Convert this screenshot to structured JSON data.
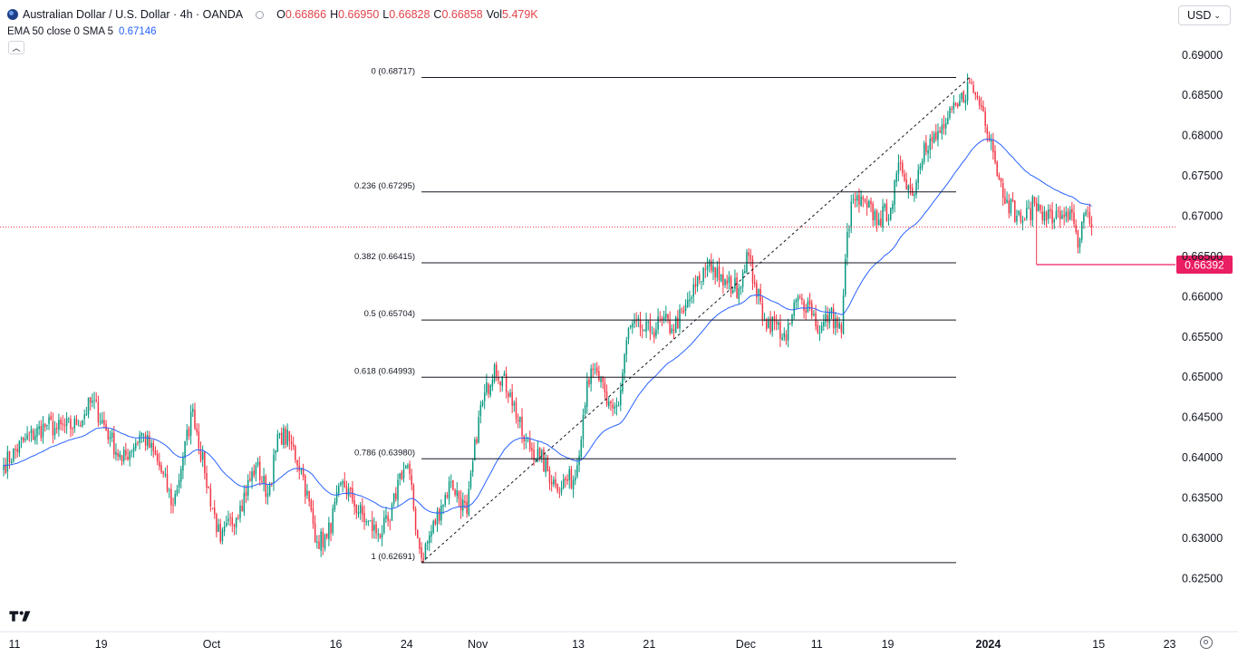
{
  "header": {
    "symbol": "Australian Dollar / U.S. Dollar · 4h · OANDA",
    "open_label": "O",
    "open": "0.66866",
    "high_label": "H",
    "high": "0.66950",
    "low_label": "L",
    "low": "0.66828",
    "close_label": "C",
    "close": "0.66858",
    "vol_label": "Vol",
    "vol": "5.479K"
  },
  "indicator": {
    "label": "EMA 50 close 0 SMA 5",
    "value": "0.67146"
  },
  "currency_selector": {
    "label": "USD"
  },
  "colors": {
    "up": "#089981",
    "down": "#f23645",
    "ema": "#2962ff",
    "price_line": "#f23645",
    "fib": "#131722"
  },
  "chart_data": {
    "type": "candlestick",
    "title": "Australian Dollar / U.S. Dollar · 4h · OANDA",
    "ylim": [
      0.6225,
      0.6915
    ],
    "y_ticks": [
      "0.69000",
      "0.68500",
      "0.68000",
      "0.67500",
      "0.67000",
      "0.66500",
      "0.66000",
      "0.65500",
      "0.65000",
      "0.64500",
      "0.64000",
      "0.63500",
      "0.63000",
      "0.62500"
    ],
    "x_ticks": [
      {
        "label": "11",
        "i": 0
      },
      {
        "label": "19",
        "i": 44
      },
      {
        "label": "Oct",
        "i": 100
      },
      {
        "label": "16",
        "i": 163
      },
      {
        "label": "24",
        "i": 199
      },
      {
        "label": "Nov",
        "i": 235
      },
      {
        "label": "13",
        "i": 286
      },
      {
        "label": "21",
        "i": 322
      },
      {
        "label": "Dec",
        "i": 371
      },
      {
        "label": "11",
        "i": 407
      },
      {
        "label": "19",
        "i": 443
      },
      {
        "label": "2024",
        "i": 494
      },
      {
        "label": "15",
        "i": 550
      },
      {
        "label": "23",
        "i": 586
      }
    ],
    "anchors": [
      [
        0,
        0.639
      ],
      [
        10,
        0.642
      ],
      [
        22,
        0.644
      ],
      [
        27,
        0.6435
      ],
      [
        37,
        0.644
      ],
      [
        45,
        0.647
      ],
      [
        54,
        0.6425
      ],
      [
        60,
        0.6395
      ],
      [
        70,
        0.643
      ],
      [
        78,
        0.6395
      ],
      [
        86,
        0.634
      ],
      [
        91,
        0.64
      ],
      [
        96,
        0.646
      ],
      [
        102,
        0.638
      ],
      [
        110,
        0.6295
      ],
      [
        120,
        0.634
      ],
      [
        128,
        0.639
      ],
      [
        134,
        0.6355
      ],
      [
        140,
        0.643
      ],
      [
        145,
        0.642
      ],
      [
        151,
        0.6385
      ],
      [
        159,
        0.6295
      ],
      [
        164,
        0.63
      ],
      [
        172,
        0.637
      ],
      [
        177,
        0.6345
      ],
      [
        184,
        0.632
      ],
      [
        190,
        0.6305
      ],
      [
        196,
        0.632
      ],
      [
        201,
        0.638
      ],
      [
        205,
        0.639
      ],
      [
        210,
        0.63
      ],
      [
        212,
        0.6275
      ],
      [
        222,
        0.634
      ],
      [
        227,
        0.637
      ],
      [
        235,
        0.633
      ],
      [
        241,
        0.645
      ],
      [
        249,
        0.6515
      ],
      [
        257,
        0.648
      ],
      [
        264,
        0.642
      ],
      [
        272,
        0.64
      ],
      [
        280,
        0.6365
      ],
      [
        290,
        0.6375
      ],
      [
        296,
        0.6495
      ],
      [
        301,
        0.6505
      ],
      [
        306,
        0.6465
      ],
      [
        312,
        0.6465
      ],
      [
        317,
        0.656
      ],
      [
        323,
        0.656
      ],
      [
        328,
        0.6555
      ],
      [
        334,
        0.657
      ],
      [
        339,
        0.656
      ],
      [
        345,
        0.658
      ],
      [
        353,
        0.662
      ],
      [
        358,
        0.6645
      ],
      [
        363,
        0.662
      ],
      [
        367,
        0.6615
      ],
      [
        373,
        0.661
      ],
      [
        377,
        0.6655
      ],
      [
        381,
        0.6615
      ],
      [
        386,
        0.657
      ],
      [
        392,
        0.6565
      ],
      [
        397,
        0.6545
      ],
      [
        402,
        0.6595
      ],
      [
        409,
        0.659
      ],
      [
        414,
        0.6555
      ],
      [
        419,
        0.658
      ],
      [
        425,
        0.6555
      ],
      [
        428,
        0.668
      ],
      [
        431,
        0.672
      ],
      [
        438,
        0.671
      ],
      [
        444,
        0.6695
      ],
      [
        450,
        0.671
      ],
      [
        455,
        0.6765
      ],
      [
        461,
        0.6725
      ],
      [
        467,
        0.679
      ],
      [
        473,
        0.6795
      ],
      [
        478,
        0.6815
      ],
      [
        484,
        0.6835
      ],
      [
        490,
        0.6865
      ],
      [
        493,
        0.685
      ],
      [
        497,
        0.683
      ],
      [
        501,
        0.6795
      ],
      [
        505,
        0.6745
      ],
      [
        509,
        0.672
      ],
      [
        514,
        0.67
      ],
      [
        518,
        0.6695
      ],
      [
        523,
        0.6715
      ],
      [
        528,
        0.6705
      ],
      [
        533,
        0.6695
      ],
      [
        539,
        0.6705
      ],
      [
        543,
        0.669
      ],
      [
        545,
        0.666
      ],
      [
        549,
        0.6705
      ],
      [
        551,
        0.669
      ],
      [
        552,
        0.6686
      ]
    ],
    "wicks": [
      {
        "i": 212,
        "low": 0.62691
      },
      {
        "i": 490,
        "high": 0.68717
      },
      {
        "i": 524,
        "low": 0.66392
      }
    ],
    "last_price": 0.66858,
    "fibonacci": {
      "levels": [
        {
          "ratio": "0",
          "price": 0.68717,
          "label": "0 (0.68717)"
        },
        {
          "ratio": "0.236",
          "price": 0.67295,
          "label": "0.236 (0.67295)"
        },
        {
          "ratio": "0.382",
          "price": 0.66415,
          "label": "0.382 (0.66415)"
        },
        {
          "ratio": "0.5",
          "price": 0.65704,
          "label": "0.5 (0.65704)"
        },
        {
          "ratio": "0.618",
          "price": 0.64993,
          "label": "0.618 (0.64993)"
        },
        {
          "ratio": "0.786",
          "price": 0.6398,
          "label": "0.786 (0.63980)"
        },
        {
          "ratio": "1",
          "price": 0.62691,
          "label": "1 (0.62691)"
        }
      ],
      "start_index": 212,
      "end_index": 490
    },
    "support_line": {
      "price": 0.66392,
      "label": "0.66392",
      "start_index": 524,
      "end_index": 552
    },
    "ema_period": 50
  }
}
